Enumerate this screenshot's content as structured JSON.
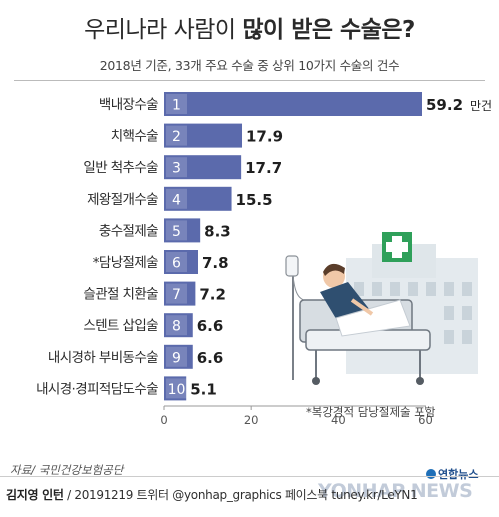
{
  "header": {
    "title_plain": "우리나라 사람이 ",
    "title_bold": "많이 받은 수술은?",
    "subtitle": "2018년 기준, 33개 주요 수술 중 상위 10가지 수술의 건수"
  },
  "chart_data": {
    "type": "bar",
    "orientation": "horizontal",
    "categories": [
      "백내장수술",
      "치핵수술",
      "일반 척추수술",
      "제왕절개수술",
      "충수절제술",
      "*담낭절제술",
      "슬관절 치환술",
      "스텐트 삽입술",
      "내시경하 부비동수술",
      "내시경·경피적담도수술"
    ],
    "ranks": [
      "1",
      "2",
      "3",
      "4",
      "5",
      "6",
      "7",
      "8",
      "9",
      "10"
    ],
    "values": [
      59.2,
      17.9,
      17.7,
      15.5,
      8.3,
      7.8,
      7.2,
      6.6,
      6.6,
      5.1
    ],
    "value_labels": [
      "59.2",
      "17.9",
      "17.7",
      "15.5",
      "8.3",
      "7.8",
      "7.2",
      "6.6",
      "6.6",
      "5.1"
    ],
    "first_value_unit": "만건",
    "xticks": [
      "0",
      "20",
      "40",
      "60"
    ],
    "xlim": [
      0,
      60
    ],
    "bar_color": "#5b6aac",
    "grid": false
  },
  "footnote": "*복강경적 담낭절제술 포함",
  "source": "자료/ 국민건강보험공단",
  "credit": {
    "author": "김지영 인턴",
    "details": " / 20191219 트위터 @yonhap_graphics  페이스북 tuney.kr/LeYN1"
  },
  "watermark": {
    "brand": "연합뉴스",
    "text": "YONHAP NEWS"
  },
  "illustration": {
    "icon": "hospital-bed-patient-icon"
  }
}
